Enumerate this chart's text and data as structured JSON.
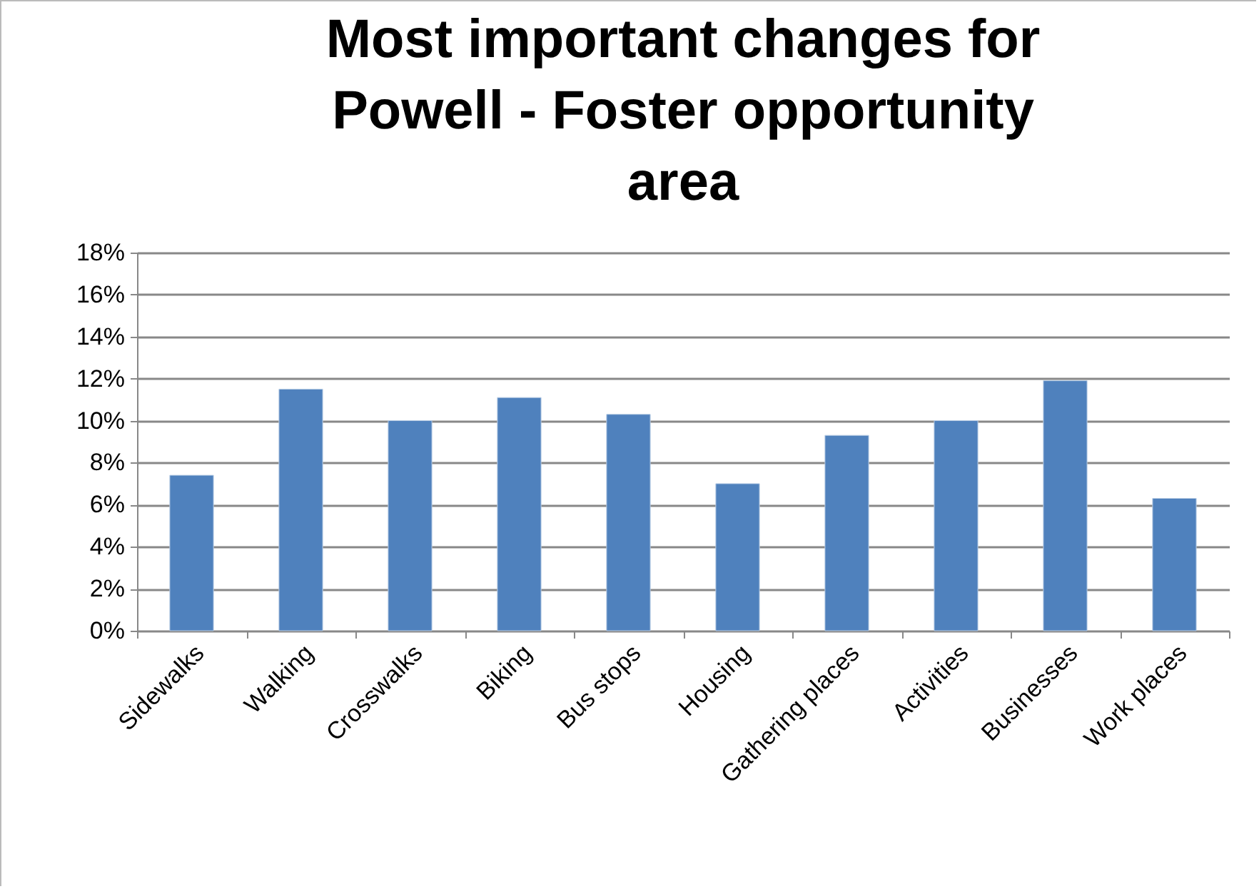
{
  "chart_data": {
    "type": "bar",
    "title": "Most important changes for Powell - Foster opportunity area",
    "categories": [
      "Sidewalks",
      "Walking",
      "Crosswalks",
      "Biking",
      "Bus stops",
      "Housing",
      "Gathering places",
      "Activities",
      "Businesses",
      "Work places"
    ],
    "values": [
      7.4,
      11.5,
      10.0,
      11.1,
      10.3,
      7.0,
      9.3,
      10.0,
      11.9,
      6.3
    ],
    "color": "#4f81bd",
    "ylim": [
      0,
      18
    ],
    "yticks": [
      {
        "value": 0,
        "label": "0%"
      },
      {
        "value": 2,
        "label": "2%"
      },
      {
        "value": 4,
        "label": "4%"
      },
      {
        "value": 6,
        "label": "6%"
      },
      {
        "value": 8,
        "label": "8%"
      },
      {
        "value": 10,
        "label": "10%"
      },
      {
        "value": 12,
        "label": "12%"
      },
      {
        "value": 14,
        "label": "14%"
      },
      {
        "value": 16,
        "label": "16%"
      },
      {
        "value": 18,
        "label": "18%"
      }
    ],
    "grid": "y"
  }
}
